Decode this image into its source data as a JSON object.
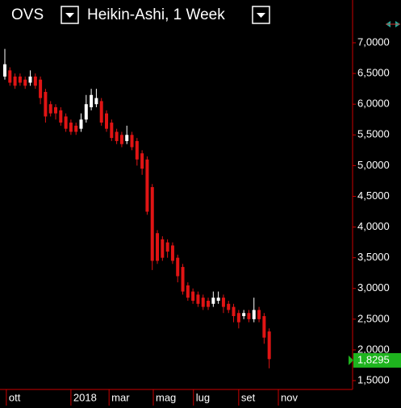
{
  "header": {
    "symbol": "OVS",
    "chart_type": "Heikin-Ashi, 1 Week"
  },
  "chart_data": {
    "type": "candlestick",
    "x": [
      0,
      1,
      2,
      3,
      4,
      5,
      6,
      7,
      8,
      9,
      10,
      11,
      12,
      13,
      14,
      15,
      16,
      17,
      18,
      19,
      20,
      21,
      22,
      23,
      24,
      25,
      26,
      27,
      28,
      29,
      30,
      31,
      32,
      33,
      34,
      35,
      36,
      37,
      38,
      39,
      40,
      41,
      42,
      43,
      44,
      45,
      46,
      47,
      48,
      49,
      50,
      51,
      52
    ],
    "open": [
      6.45,
      6.55,
      6.45,
      6.45,
      6.4,
      6.35,
      6.45,
      6.4,
      6.2,
      6.0,
      5.95,
      5.9,
      5.8,
      5.7,
      5.65,
      5.6,
      5.75,
      5.95,
      6.0,
      6.05,
      5.85,
      5.7,
      5.55,
      5.5,
      5.4,
      5.5,
      5.4,
      5.2,
      5.1,
      4.65,
      3.9,
      3.8,
      3.75,
      3.7,
      3.5,
      3.35,
      3.05,
      2.95,
      2.9,
      2.85,
      2.8,
      2.75,
      2.8,
      2.85,
      2.75,
      2.7,
      2.6,
      2.55,
      2.6,
      2.5,
      2.65,
      2.55,
      2.3
    ],
    "high": [
      6.9,
      6.6,
      6.5,
      6.5,
      6.45,
      6.55,
      6.5,
      6.45,
      6.25,
      6.05,
      6.0,
      5.95,
      5.85,
      5.75,
      5.7,
      5.85,
      6.15,
      6.25,
      6.25,
      6.1,
      5.9,
      5.75,
      5.6,
      5.55,
      5.65,
      5.55,
      5.45,
      5.25,
      5.15,
      4.7,
      3.95,
      3.85,
      3.8,
      3.75,
      3.55,
      3.4,
      3.1,
      3.0,
      2.95,
      2.9,
      2.85,
      2.95,
      2.95,
      2.9,
      2.8,
      2.75,
      2.65,
      2.65,
      2.65,
      2.85,
      2.7,
      2.6,
      2.35
    ],
    "low": [
      6.4,
      6.3,
      6.25,
      6.3,
      6.25,
      6.3,
      6.25,
      6.0,
      5.7,
      5.8,
      5.75,
      5.65,
      5.55,
      5.5,
      5.5,
      5.55,
      5.7,
      5.9,
      5.95,
      5.65,
      5.55,
      5.4,
      5.35,
      5.3,
      5.35,
      5.25,
      5.0,
      4.85,
      4.2,
      3.3,
      3.4,
      3.45,
      3.5,
      3.4,
      3.1,
      2.9,
      2.8,
      2.75,
      2.7,
      2.65,
      2.65,
      2.7,
      2.75,
      2.6,
      2.6,
      2.45,
      2.35,
      2.5,
      2.45,
      2.45,
      2.45,
      2.1,
      1.7
    ],
    "close": [
      6.65,
      6.35,
      6.3,
      6.35,
      6.3,
      6.45,
      6.3,
      6.1,
      5.8,
      5.85,
      5.85,
      5.7,
      5.6,
      5.55,
      5.55,
      5.75,
      6.0,
      6.15,
      6.1,
      5.7,
      5.6,
      5.45,
      5.4,
      5.35,
      5.5,
      5.3,
      5.1,
      4.95,
      4.25,
      3.45,
      3.45,
      3.5,
      3.6,
      3.45,
      3.2,
      2.95,
      2.85,
      2.8,
      2.75,
      2.7,
      2.7,
      2.85,
      2.85,
      2.7,
      2.65,
      2.55,
      2.45,
      2.6,
      2.5,
      2.65,
      2.5,
      2.2,
      1.85
    ],
    "up_color": "#ffffff",
    "down_color": "#e01414",
    "xlim": [
      -0.95,
      68.4
    ],
    "xticks": [
      {
        "value": 0.3,
        "label": "ott"
      },
      {
        "value": 13,
        "label": "2018"
      },
      {
        "value": 20.5,
        "label": "mar"
      },
      {
        "value": 29.2,
        "label": "mag"
      },
      {
        "value": 37.1,
        "label": "lug"
      },
      {
        "value": 46,
        "label": "set"
      },
      {
        "value": 53.8,
        "label": "nov"
      }
    ],
    "ylim": [
      1.356,
      7.696
    ],
    "yticks": [
      {
        "value": 1.5,
        "label": "1,5000"
      },
      {
        "value": 2,
        "label": "2,0000"
      },
      {
        "value": 2.5,
        "label": "2,5000"
      },
      {
        "value": 3,
        "label": "3,0000"
      },
      {
        "value": 3.5,
        "label": "3,5000"
      },
      {
        "value": 4,
        "label": "4,0000"
      },
      {
        "value": 4.5,
        "label": "4,5000"
      },
      {
        "value": 5,
        "label": "5,0000"
      },
      {
        "value": 5.5,
        "label": "5,5000"
      },
      {
        "value": 6,
        "label": "6,0000"
      },
      {
        "value": 6.5,
        "label": "6,5000"
      },
      {
        "value": 7,
        "label": "7,0000"
      }
    ],
    "last_price": {
      "value": 1.8295,
      "label": "1,8295"
    },
    "last_price_color": "#1eb41e"
  }
}
